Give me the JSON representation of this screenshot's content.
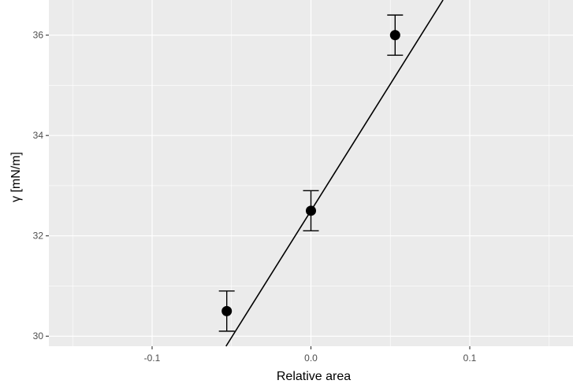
{
  "chart_data": {
    "type": "scatter",
    "title": "",
    "xlabel": "Relative area",
    "ylabel": "γ [mN/m]",
    "xlim": [
      -0.165,
      0.165
    ],
    "ylim": [
      29.8,
      36.7
    ],
    "x_ticks": [
      -0.1,
      0.0,
      0.1
    ],
    "x_tick_labels": [
      "-0.1",
      "0.0",
      "0.1"
    ],
    "y_ticks": [
      30,
      32,
      34,
      36
    ],
    "y_tick_labels": [
      "30",
      "32",
      "34",
      "36"
    ],
    "grid": true,
    "background": "#ebebeb",
    "grid_color": "#ffffff",
    "points": [
      {
        "x": -0.053,
        "y": 30.5,
        "err_low": 30.1,
        "err_high": 30.9
      },
      {
        "x": 0.0,
        "y": 32.5,
        "err_low": 32.1,
        "err_high": 32.9
      },
      {
        "x": 0.053,
        "y": 36.0,
        "err_low": 35.6,
        "err_high": 36.4
      }
    ],
    "fit_line": {
      "slope": 50.5,
      "intercept": 32.5
    },
    "point_color": "#000000",
    "line_color": "#000000"
  }
}
